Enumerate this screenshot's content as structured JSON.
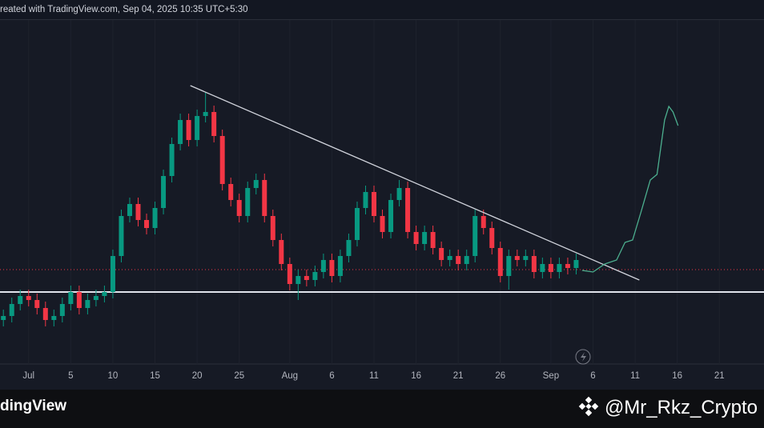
{
  "header_text": "reated with TradingView.com, Sep 04, 2025 10:35 UTC+5:30",
  "footer": {
    "logo_text": "dingView",
    "watermark": "@Mr_Rkz_Crypto"
  },
  "chart_data": {
    "type": "candlestick",
    "x": [
      -3,
      -2,
      -1,
      0,
      1,
      2,
      3,
      4,
      5,
      6,
      7,
      8,
      9,
      10,
      11,
      12,
      13,
      14,
      15,
      16,
      17,
      18,
      19,
      20,
      21,
      22,
      23,
      24,
      25,
      26,
      27,
      28,
      29,
      30,
      31,
      32,
      33,
      34,
      35,
      36,
      37,
      38,
      39,
      40,
      41,
      42,
      43,
      44,
      45,
      46,
      47,
      48,
      49,
      50,
      51,
      52,
      53,
      54,
      55,
      56,
      57,
      58,
      59,
      60,
      61,
      62,
      63,
      64,
      65
    ],
    "open": [
      55,
      60,
      75,
      85,
      80,
      70,
      55,
      60,
      75,
      90,
      70,
      80,
      85,
      90,
      135,
      185,
      200,
      180,
      170,
      195,
      235,
      275,
      305,
      280,
      310,
      315,
      285,
      225,
      205,
      185,
      220,
      230,
      185,
      155,
      125,
      100,
      110,
      105,
      115,
      130,
      110,
      135,
      155,
      195,
      215,
      185,
      165,
      205,
      220,
      165,
      150,
      165,
      145,
      130,
      135,
      125,
      135,
      185,
      170,
      145,
      110,
      135,
      130,
      135,
      115,
      125,
      115,
      125,
      120
    ],
    "high": [
      68,
      83,
      93,
      93,
      88,
      78,
      68,
      83,
      98,
      98,
      88,
      93,
      98,
      143,
      193,
      208,
      208,
      188,
      203,
      243,
      283,
      313,
      313,
      318,
      340,
      323,
      293,
      233,
      213,
      228,
      238,
      238,
      193,
      163,
      133,
      118,
      118,
      123,
      138,
      138,
      143,
      163,
      203,
      223,
      223,
      193,
      213,
      230,
      228,
      173,
      173,
      173,
      153,
      143,
      143,
      143,
      193,
      193,
      178,
      153,
      143,
      143,
      143,
      143,
      133,
      133,
      133,
      133,
      138
    ],
    "low": [
      47,
      52,
      67,
      72,
      62,
      47,
      47,
      52,
      67,
      62,
      62,
      72,
      77,
      82,
      127,
      177,
      172,
      162,
      162,
      187,
      227,
      267,
      272,
      272,
      302,
      277,
      217,
      197,
      177,
      177,
      212,
      177,
      147,
      117,
      92,
      80,
      97,
      97,
      107,
      102,
      102,
      127,
      147,
      187,
      177,
      157,
      157,
      197,
      157,
      142,
      142,
      137,
      122,
      122,
      117,
      117,
      127,
      162,
      137,
      102,
      93,
      122,
      122,
      107,
      107,
      107,
      107,
      112,
      112
    ],
    "close": [
      60,
      75,
      85,
      80,
      70,
      55,
      60,
      75,
      90,
      70,
      80,
      85,
      90,
      135,
      185,
      200,
      180,
      170,
      195,
      235,
      275,
      305,
      280,
      310,
      315,
      285,
      225,
      205,
      185,
      220,
      230,
      185,
      155,
      125,
      100,
      110,
      105,
      115,
      130,
      110,
      135,
      155,
      195,
      215,
      185,
      165,
      205,
      220,
      165,
      150,
      165,
      145,
      130,
      135,
      125,
      135,
      185,
      170,
      145,
      110,
      135,
      130,
      135,
      115,
      125,
      115,
      125,
      120,
      130
    ],
    "up_color": "#089981",
    "down_color": "#f23645",
    "xlim": [
      -3.4,
      87.3
    ],
    "ylim": [
      0,
      430
    ],
    "xticks": [
      {
        "value": 0,
        "label": "Jul"
      },
      5,
      10,
      15,
      20,
      25,
      {
        "value": 31,
        "label": "Aug"
      },
      {
        "value": 36,
        "label": "6"
      },
      {
        "value": 41,
        "label": "11"
      },
      {
        "value": 46,
        "label": "16"
      },
      {
        "value": 51,
        "label": "21"
      },
      {
        "value": 56,
        "label": "26"
      },
      {
        "value": 62,
        "label": "Sep"
      },
      {
        "value": 67,
        "label": "6"
      },
      {
        "value": 72,
        "label": "11"
      },
      {
        "value": 77,
        "label": "16"
      },
      {
        "value": 82,
        "label": "21"
      }
    ],
    "grid": true,
    "trendline": {
      "x": [
        19.2,
        72.5
      ],
      "values": [
        348,
        105
      ],
      "color": "#d1d4dc"
    },
    "support_level": 90,
    "support_color": "#e0e3eb",
    "price_line": 118,
    "price_line_color": "#f23645",
    "projection": {
      "x": [
        65.7,
        67.0,
        68.4,
        69.8,
        70.8,
        71.7,
        72.7,
        73.8,
        74.6,
        75.5,
        76.0,
        76.5,
        77.1
      ],
      "values": [
        117,
        115,
        125,
        130,
        152,
        155,
        190,
        230,
        237,
        305,
        322,
        315,
        298
      ],
      "color": "#4caf8f"
    }
  }
}
